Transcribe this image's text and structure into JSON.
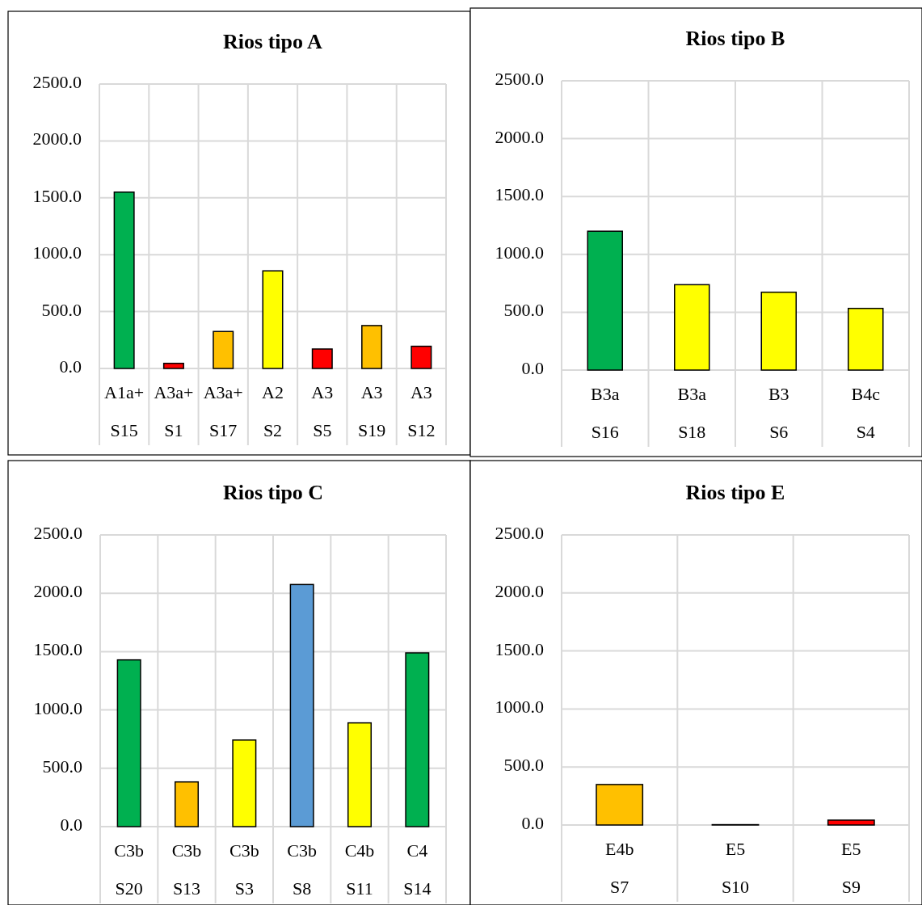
{
  "chart_data": [
    {
      "type": "bar",
      "title": "Rios tipo A",
      "categories": [
        "A1a+\nS15",
        "A3a+\nS1",
        "A3a+\nS17",
        "A2\nS2",
        "A3\nS5",
        "A3\nS19",
        "A3\nS12"
      ],
      "values": [
        1550,
        45,
        325,
        858,
        171,
        377,
        195
      ],
      "colors": [
        "#00b050",
        "#ff0000",
        "#ffc000",
        "#ffff00",
        "#ff0000",
        "#ffc000",
        "#ff0000"
      ],
      "ylim": [
        0,
        2500
      ],
      "yticks": [
        {
          "value": 0,
          "label": "0.0"
        },
        {
          "value": 500,
          "label": "500.0"
        },
        {
          "value": 1000,
          "label": "1000.0"
        },
        {
          "value": 1500,
          "label": "1500.0"
        },
        {
          "value": 2000,
          "label": "2000.0"
        },
        {
          "value": 2500,
          "label": "2500.0"
        }
      ],
      "grid": true
    },
    {
      "type": "bar",
      "title": "Rios tipo B",
      "categories": [
        "B3a\nS16",
        "B3a\nS18",
        "B3\nS6",
        "B4c\nS4"
      ],
      "values": [
        1200,
        738,
        673,
        533
      ],
      "colors": [
        "#00b050",
        "#ffff00",
        "#ffff00",
        "#ffff00"
      ],
      "ylim": [
        0,
        2500
      ],
      "yticks": [
        {
          "value": 0,
          "label": "0.0"
        },
        {
          "value": 500,
          "label": "500.0"
        },
        {
          "value": 1000,
          "label": "1000.0"
        },
        {
          "value": 1500,
          "label": "1500.0"
        },
        {
          "value": 2000,
          "label": "2000.0"
        },
        {
          "value": 2500,
          "label": "2500.0"
        }
      ],
      "grid": true
    },
    {
      "type": "bar",
      "title": "Rios tipo C",
      "categories": [
        "C3b\nS20",
        "C3b\nS13",
        "C3b\nS3",
        "C3b\nS8",
        "C4b\nS11",
        "C4\nS14"
      ],
      "values": [
        1429,
        383,
        742,
        2075,
        889,
        1489
      ],
      "colors": [
        "#00b050",
        "#ffc000",
        "#ffff00",
        "#5b9bd5",
        "#ffff00",
        "#00b050"
      ],
      "ylim": [
        0,
        2500
      ],
      "yticks": [
        {
          "value": 0,
          "label": "0.0"
        },
        {
          "value": 500,
          "label": "500.0"
        },
        {
          "value": 1000,
          "label": "1000.0"
        },
        {
          "value": 1500,
          "label": "1500.0"
        },
        {
          "value": 2000,
          "label": "2000.0"
        },
        {
          "value": 2500,
          "label": "2500.0"
        }
      ],
      "grid": true
    },
    {
      "type": "bar",
      "title": "Rios tipo E",
      "categories": [
        "E4b\nS7",
        "E5\nS10",
        "E5\nS9"
      ],
      "values": [
        349,
        3,
        42
      ],
      "colors": [
        "#ffc000",
        "#808080",
        "#ff0000"
      ],
      "ylim": [
        0,
        2500
      ],
      "yticks": [
        {
          "value": 0,
          "label": "0.0"
        },
        {
          "value": 500,
          "label": "500.0"
        },
        {
          "value": 1000,
          "label": "1000.0"
        },
        {
          "value": 1500,
          "label": "1500.0"
        },
        {
          "value": 2000,
          "label": "2000.0"
        },
        {
          "value": 2500,
          "label": "2500.0"
        }
      ],
      "grid": true
    }
  ]
}
